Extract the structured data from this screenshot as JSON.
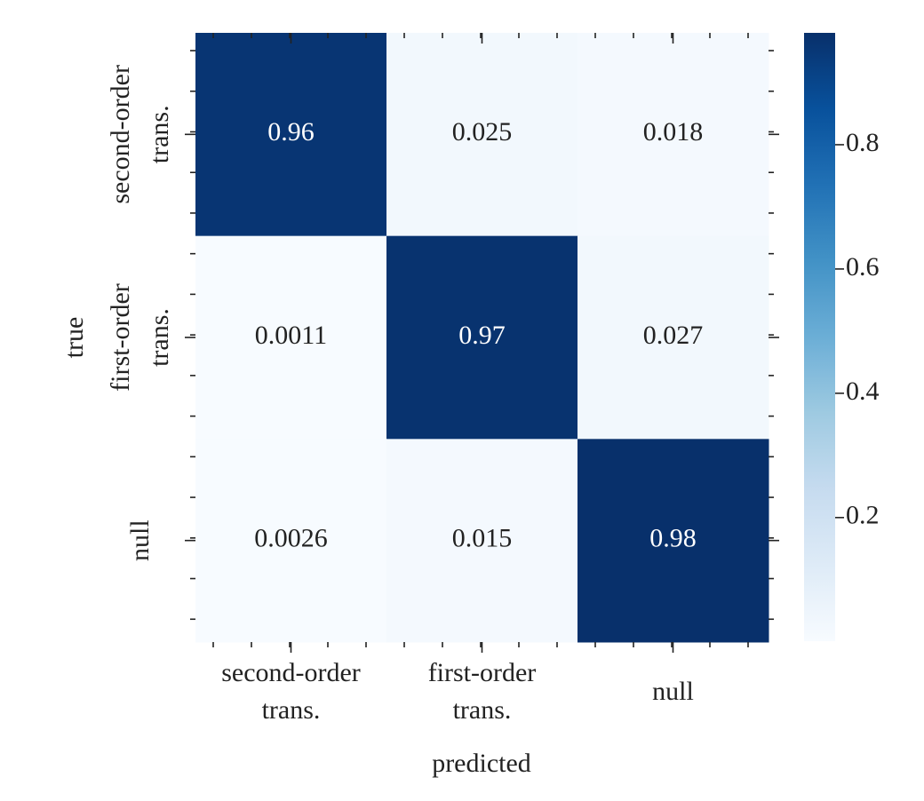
{
  "chart_data": {
    "type": "heatmap",
    "x_label": "predicted",
    "y_label": "true",
    "x_categories": [
      "second-order trans.",
      "first-order trans.",
      "null"
    ],
    "y_categories": [
      "second-order trans.",
      "first-order trans.",
      "null"
    ],
    "values": [
      [
        0.96,
        0.025,
        0.018
      ],
      [
        0.0011,
        0.97,
        0.027
      ],
      [
        0.0026,
        0.015,
        0.98
      ]
    ],
    "colormap": "Blues",
    "clim": [
      0.0011,
      0.98
    ],
    "cticks": [
      0.2,
      0.4,
      0.6,
      0.8
    ]
  }
}
